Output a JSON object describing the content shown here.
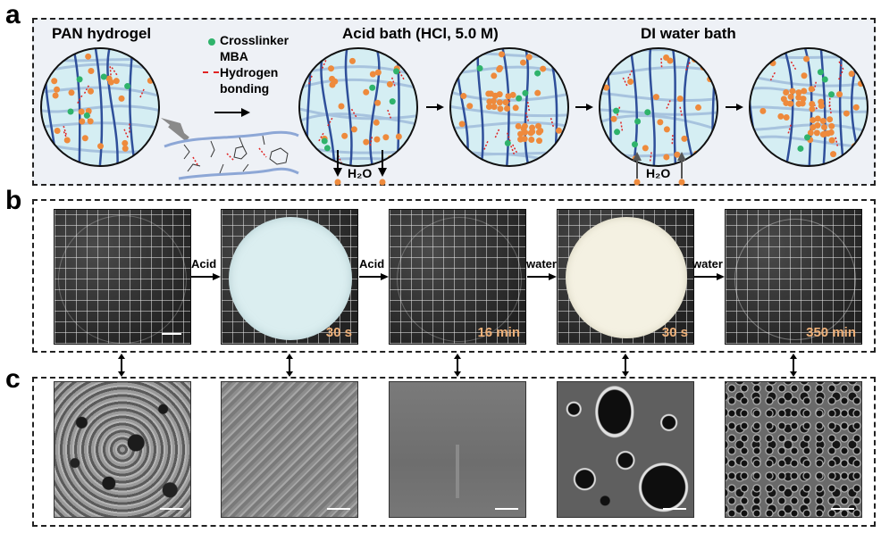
{
  "panel_a": {
    "letter": "a",
    "title_left": "PAN hydrogel",
    "legend": {
      "crosslinker_line1": "Crosslinker",
      "crosslinker_line2": "MBA",
      "hbond_line1": "Hydrogen",
      "hbond_line2": "bonding"
    },
    "acid_title": "Acid bath (HCl, 5.0 M)",
    "water_title": "DI water bath",
    "h2o_out": "H₂O",
    "h2o_in": "H₂O"
  },
  "panel_b": {
    "letter": "b",
    "steps": [
      {
        "arrow_label": "Acid"
      },
      {
        "arrow_label": "Acid"
      },
      {
        "arrow_label": "water"
      },
      {
        "arrow_label": "water"
      }
    ],
    "photos": [
      {
        "time": "",
        "state": "transparent"
      },
      {
        "time": "30 s",
        "state": "opaque-blue"
      },
      {
        "time": "16 min",
        "state": "transparent"
      },
      {
        "time": "30 s",
        "state": "opaque-white"
      },
      {
        "time": "350 min",
        "state": "transparent"
      }
    ]
  },
  "panel_c": {
    "letter": "c",
    "sem": [
      {
        "texture": "porous-network"
      },
      {
        "texture": "rough-dense"
      },
      {
        "texture": "smooth"
      },
      {
        "texture": "large-pores"
      },
      {
        "texture": "dense-pores"
      }
    ]
  },
  "colors": {
    "gel_bg": "#d5eef3",
    "polymer_light": "#a7c3de",
    "polymer_dark": "#2f4f9a",
    "ion": "#ee8a3c",
    "crosslinker": "#2fb36b",
    "hbond": "#e02424",
    "opaque_blue_disc": "#dbeef0",
    "opaque_white_disc": "#f4f1e2",
    "time_label": "#f0b27a"
  }
}
